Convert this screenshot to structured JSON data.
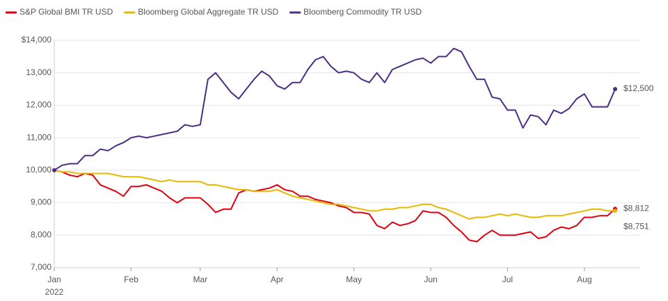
{
  "chart_data": {
    "type": "line",
    "categories": [
      "Jan",
      null,
      null,
      null,
      null,
      null,
      null,
      null,
      null,
      null,
      "Feb",
      null,
      null,
      null,
      null,
      null,
      null,
      null,
      null,
      "Mar",
      null,
      null,
      null,
      null,
      null,
      null,
      null,
      null,
      null,
      "Apr",
      null,
      null,
      null,
      null,
      null,
      null,
      null,
      null,
      null,
      "May",
      null,
      null,
      null,
      null,
      null,
      null,
      null,
      null,
      null,
      "Jun",
      null,
      null,
      null,
      null,
      null,
      null,
      null,
      null,
      null,
      "Jul",
      null,
      null,
      null,
      null,
      null,
      null,
      null,
      null,
      null,
      "Aug",
      null,
      null,
      null,
      null
    ],
    "year": "2022",
    "ylim": [
      7000,
      14000
    ],
    "yticks": [
      {
        "value": 7000,
        "label": "7,000"
      },
      {
        "value": 8000,
        "label": "8,000"
      },
      {
        "value": 9000,
        "label": "9,000"
      },
      {
        "value": 10000,
        "label": "10,000"
      },
      {
        "value": 11000,
        "label": "11,000"
      },
      {
        "value": 12000,
        "label": "12,000"
      },
      {
        "value": 13000,
        "label": "13,000"
      },
      {
        "value": 14000,
        "label": "$14,000"
      }
    ],
    "grid": true,
    "legend": "top-left",
    "series": [
      {
        "name": "S&P Global BMI TR USD",
        "color": "#e0000f",
        "values": [
          10000,
          9950,
          9850,
          9800,
          9900,
          9850,
          9550,
          9450,
          9350,
          9200,
          9500,
          9500,
          9550,
          9450,
          9350,
          9150,
          9000,
          9150,
          9150,
          9150,
          8950,
          8700,
          8800,
          8800,
          9300,
          9400,
          9350,
          9400,
          9450,
          9550,
          9400,
          9350,
          9200,
          9200,
          9100,
          9050,
          9000,
          8900,
          8850,
          8700,
          8700,
          8650,
          8300,
          8200,
          8400,
          8300,
          8350,
          8450,
          8750,
          8700,
          8700,
          8550,
          8300,
          8100,
          7850,
          7800,
          8000,
          8150,
          8000,
          8000,
          8000,
          8050,
          8100,
          7900,
          7950,
          8150,
          8250,
          8200,
          8300,
          8550,
          8550,
          8600,
          8600,
          8812
        ],
        "value_labels": [
          null,
          null,
          null,
          null,
          null,
          null,
          null,
          null,
          null,
          null,
          null,
          null,
          null,
          null,
          null,
          null,
          null,
          null,
          null,
          null,
          null,
          null,
          null,
          null,
          null,
          null,
          null,
          null,
          null,
          null,
          null,
          null,
          null,
          null,
          null,
          null,
          null,
          null,
          null,
          null,
          null,
          null,
          null,
          null,
          null,
          null,
          null,
          null,
          null,
          null,
          null,
          null,
          null,
          null,
          null,
          null,
          null,
          null,
          null,
          null,
          null,
          null,
          null,
          null,
          null,
          null,
          null,
          null,
          null,
          null,
          null,
          null,
          null,
          "$8,812"
        ]
      },
      {
        "name": "Bloomberg Global Aggregate TR USD",
        "color": "#e8b800",
        "values": [
          10000,
          9950,
          9950,
          9900,
          9900,
          9900,
          9900,
          9900,
          9850,
          9800,
          9800,
          9800,
          9750,
          9700,
          9650,
          9700,
          9650,
          9650,
          9650,
          9650,
          9550,
          9550,
          9500,
          9450,
          9400,
          9400,
          9350,
          9350,
          9350,
          9400,
          9300,
          9200,
          9150,
          9100,
          9050,
          9000,
          8950,
          8950,
          8900,
          8850,
          8800,
          8750,
          8750,
          8800,
          8800,
          8850,
          8850,
          8900,
          8950,
          8950,
          8850,
          8800,
          8700,
          8600,
          8500,
          8550,
          8550,
          8600,
          8650,
          8600,
          8650,
          8600,
          8550,
          8550,
          8600,
          8600,
          8600,
          8650,
          8700,
          8750,
          8800,
          8800,
          8750,
          8751
        ],
        "value_labels": [
          null,
          null,
          null,
          null,
          null,
          null,
          null,
          null,
          null,
          null,
          null,
          null,
          null,
          null,
          null,
          null,
          null,
          null,
          null,
          null,
          null,
          null,
          null,
          null,
          null,
          null,
          null,
          null,
          null,
          null,
          null,
          null,
          null,
          null,
          null,
          null,
          null,
          null,
          null,
          null,
          null,
          null,
          null,
          null,
          null,
          null,
          null,
          null,
          null,
          null,
          null,
          null,
          null,
          null,
          null,
          null,
          null,
          null,
          null,
          null,
          null,
          null,
          null,
          null,
          null,
          null,
          null,
          null,
          null,
          null,
          null,
          null,
          null,
          "$8,751"
        ]
      },
      {
        "name": "Bloomberg Commodity TR USD",
        "color": "#4b2d83",
        "values": [
          10000,
          10150,
          10200,
          10200,
          10450,
          10450,
          10650,
          10600,
          10750,
          10850,
          11000,
          11050,
          11000,
          11050,
          11100,
          11150,
          11200,
          11400,
          11350,
          11400,
          12800,
          13000,
          12700,
          12400,
          12200,
          12500,
          12800,
          13050,
          12900,
          12600,
          12500,
          12700,
          12700,
          13100,
          13400,
          13500,
          13200,
          13000,
          13050,
          13000,
          12800,
          12700,
          13000,
          12700,
          13100,
          13200,
          13300,
          13400,
          13450,
          13300,
          13500,
          13500,
          13750,
          13650,
          13200,
          12800,
          12800,
          12250,
          12200,
          11850,
          11850,
          11300,
          11700,
          11650,
          11400,
          11850,
          11750,
          11900,
          12200,
          12350,
          11950,
          11950,
          11950,
          12500
        ],
        "value_labels": [
          null,
          null,
          null,
          null,
          null,
          null,
          null,
          null,
          null,
          null,
          null,
          null,
          null,
          null,
          null,
          null,
          null,
          null,
          null,
          null,
          null,
          null,
          null,
          null,
          null,
          null,
          null,
          null,
          null,
          null,
          null,
          null,
          null,
          null,
          null,
          null,
          null,
          null,
          null,
          null,
          null,
          null,
          null,
          null,
          null,
          null,
          null,
          null,
          null,
          null,
          null,
          null,
          null,
          null,
          null,
          null,
          null,
          null,
          null,
          null,
          null,
          null,
          null,
          null,
          null,
          null,
          null,
          null,
          null,
          null,
          null,
          null,
          null,
          "$12,500"
        ]
      }
    ]
  }
}
